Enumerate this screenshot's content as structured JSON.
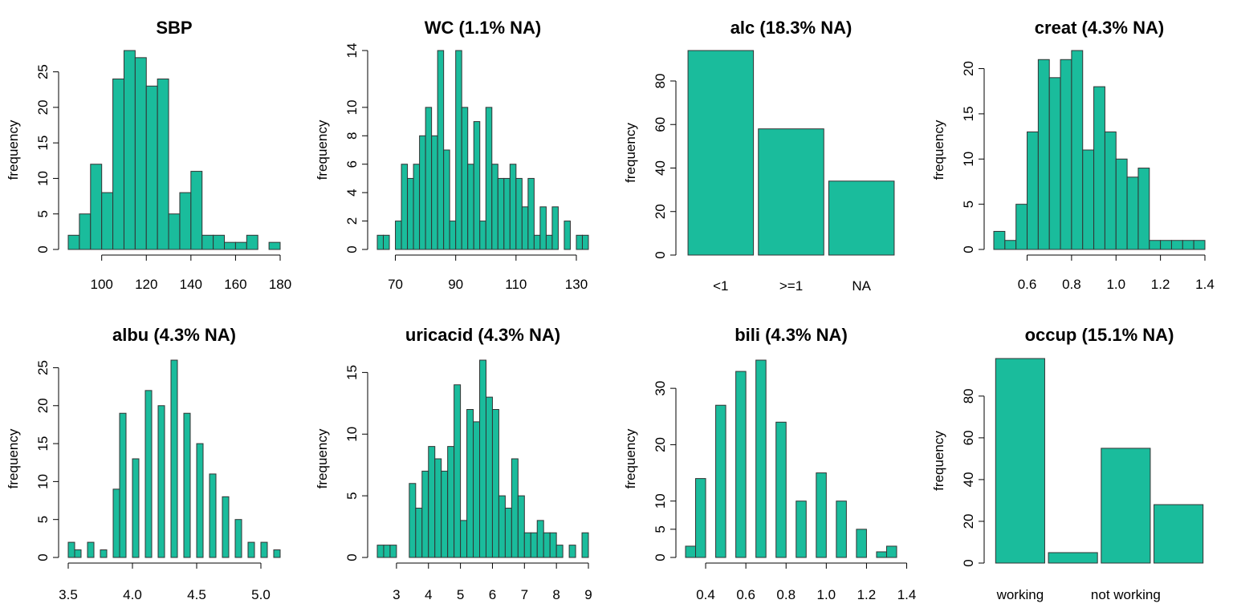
{
  "colors": {
    "bar_fill": "#1abc9c",
    "bar_edge": "#333333",
    "axis": "#000000"
  },
  "chart_data": [
    {
      "type": "bar",
      "title": "SBP",
      "ylabel": "frequency",
      "histogram": true,
      "bin_start": 85,
      "bin_width": 5,
      "values": [
        2,
        5,
        12,
        8,
        24,
        28,
        27,
        23,
        24,
        5,
        8,
        11,
        2,
        2,
        1,
        1,
        2,
        0,
        1
      ],
      "xlim": [
        85,
        180
      ],
      "xticks": [
        100,
        120,
        140,
        160,
        180
      ],
      "xtick_labels": [
        "100",
        "120",
        "140",
        "160",
        "180"
      ],
      "ylim": [
        0,
        28
      ],
      "yticks": [
        0,
        5,
        10,
        15,
        20,
        25
      ],
      "ytick_labels": [
        "0",
        "5",
        "10",
        "15",
        "20",
        "25"
      ]
    },
    {
      "type": "bar",
      "title": "WC (1.1% NA)",
      "ylabel": "frequency",
      "histogram": true,
      "bin_start": 64,
      "bin_width": 2,
      "values": [
        1,
        1,
        0,
        2,
        6,
        5,
        6,
        8,
        10,
        8,
        14,
        7,
        2,
        14,
        10,
        6,
        9,
        2,
        10,
        6,
        5,
        5,
        6,
        5,
        3,
        5,
        1,
        3,
        1,
        3,
        0,
        2,
        0,
        1,
        1
      ],
      "xlim": [
        64,
        134
      ],
      "xticks": [
        70,
        90,
        110,
        130
      ],
      "xtick_labels": [
        "70",
        "90",
        "110",
        "130"
      ],
      "ylim": [
        0,
        14
      ],
      "yticks": [
        0,
        2,
        4,
        6,
        8,
        10,
        14
      ],
      "ytick_labels": [
        "0",
        "2",
        "4",
        "6",
        "8",
        "10",
        "14"
      ]
    },
    {
      "type": "bar",
      "title": "alc (18.3% NA)",
      "ylabel": "frequency",
      "histogram": false,
      "categories": [
        "<1",
        ">=1",
        "NA"
      ],
      "category_labels": [
        "<1",
        ">=1",
        "NA"
      ],
      "values": [
        94,
        58,
        34
      ],
      "ylim": [
        0,
        94
      ],
      "yticks": [
        0,
        20,
        40,
        60,
        80
      ],
      "ytick_labels": [
        "0",
        "20",
        "40",
        "60",
        "80"
      ]
    },
    {
      "type": "bar",
      "title": "creat (4.3% NA)",
      "ylabel": "frequency",
      "histogram": true,
      "bin_start": 0.45,
      "bin_width": 0.05,
      "values": [
        2,
        1,
        5,
        13,
        21,
        19,
        21,
        22,
        11,
        18,
        13,
        10,
        8,
        9,
        1,
        1,
        1,
        1,
        1
      ],
      "xlim": [
        0.45,
        1.4
      ],
      "xticks": [
        0.6,
        0.8,
        1.0,
        1.2,
        1.4
      ],
      "xtick_labels": [
        "0.6",
        "0.8",
        "1.0",
        "1.2",
        "1.4"
      ],
      "ylim": [
        0,
        22
      ],
      "yticks": [
        0,
        5,
        10,
        15,
        20
      ],
      "ytick_labels": [
        "0",
        "5",
        "10",
        "15",
        "20"
      ]
    },
    {
      "type": "bar",
      "title": "albu (4.3% NA)",
      "ylabel": "frequency",
      "histogram": true,
      "bin_start": 3.5,
      "bin_width": 0.05,
      "values": [
        2,
        1,
        0,
        2,
        0,
        1,
        0,
        9,
        19,
        0,
        13,
        0,
        22,
        0,
        20,
        0,
        26,
        0,
        19,
        0,
        15,
        0,
        11,
        0,
        8,
        0,
        5,
        0,
        2,
        0,
        2,
        0,
        1
      ],
      "xlim": [
        3.5,
        5.15
      ],
      "xticks": [
        3.5,
        4.0,
        4.5,
        5.0
      ],
      "xtick_labels": [
        "3.5",
        "4.0",
        "4.5",
        "5.0"
      ],
      "ylim": [
        0,
        26
      ],
      "yticks": [
        0,
        5,
        10,
        15,
        20,
        25
      ],
      "ytick_labels": [
        "0",
        "5",
        "10",
        "15",
        "20",
        "25"
      ]
    },
    {
      "type": "bar",
      "title": "uricacid (4.3% NA)",
      "ylabel": "frequency",
      "histogram": true,
      "bin_start": 2.4,
      "bin_width": 0.2,
      "values": [
        1,
        1,
        1,
        0,
        0,
        6,
        4,
        7,
        9,
        8,
        7,
        9,
        14,
        3,
        12,
        11,
        16,
        13,
        12,
        5,
        4,
        8,
        5,
        2,
        2,
        3,
        2,
        2,
        1,
        0,
        1,
        0,
        2
      ],
      "xlim": [
        2.4,
        9.0
      ],
      "xticks": [
        3,
        4,
        5,
        6,
        7,
        8,
        9
      ],
      "xtick_labels": [
        "3",
        "4",
        "5",
        "6",
        "7",
        "8",
        "9"
      ],
      "ylim": [
        0,
        16
      ],
      "yticks": [
        0,
        5,
        10,
        15
      ],
      "ytick_labels": [
        "0",
        "5",
        "10",
        "15"
      ]
    },
    {
      "type": "bar",
      "title": "bili (4.3% NA)",
      "ylabel": "frequency",
      "histogram": true,
      "bin_start": 0.3,
      "bin_width": 0.05,
      "values": [
        2,
        14,
        0,
        27,
        0,
        33,
        0,
        35,
        0,
        24,
        0,
        10,
        0,
        15,
        0,
        10,
        0,
        5,
        0,
        1,
        2
      ],
      "xlim": [
        0.3,
        1.35
      ],
      "xticks": [
        0.4,
        0.6,
        0.8,
        1.0,
        1.2,
        1.4
      ],
      "xtick_labels": [
        "0.4",
        "0.6",
        "0.8",
        "1.0",
        "1.2",
        "1.4"
      ],
      "ylim": [
        0,
        35
      ],
      "yticks": [
        0,
        5,
        10,
        20,
        30
      ],
      "ytick_labels": [
        "0",
        "5",
        "10",
        "20",
        "30"
      ]
    },
    {
      "type": "bar",
      "title": "occup (15.1% NA)",
      "ylabel": "frequency",
      "histogram": false,
      "categories": [
        "working",
        "",
        "not working",
        ""
      ],
      "category_labels": [
        "working",
        "",
        "not working",
        ""
      ],
      "values": [
        98,
        5,
        55,
        28
      ],
      "ylim": [
        0,
        98
      ],
      "yticks": [
        0,
        20,
        40,
        60,
        80
      ],
      "ytick_labels": [
        "0",
        "20",
        "40",
        "60",
        "80"
      ]
    }
  ]
}
